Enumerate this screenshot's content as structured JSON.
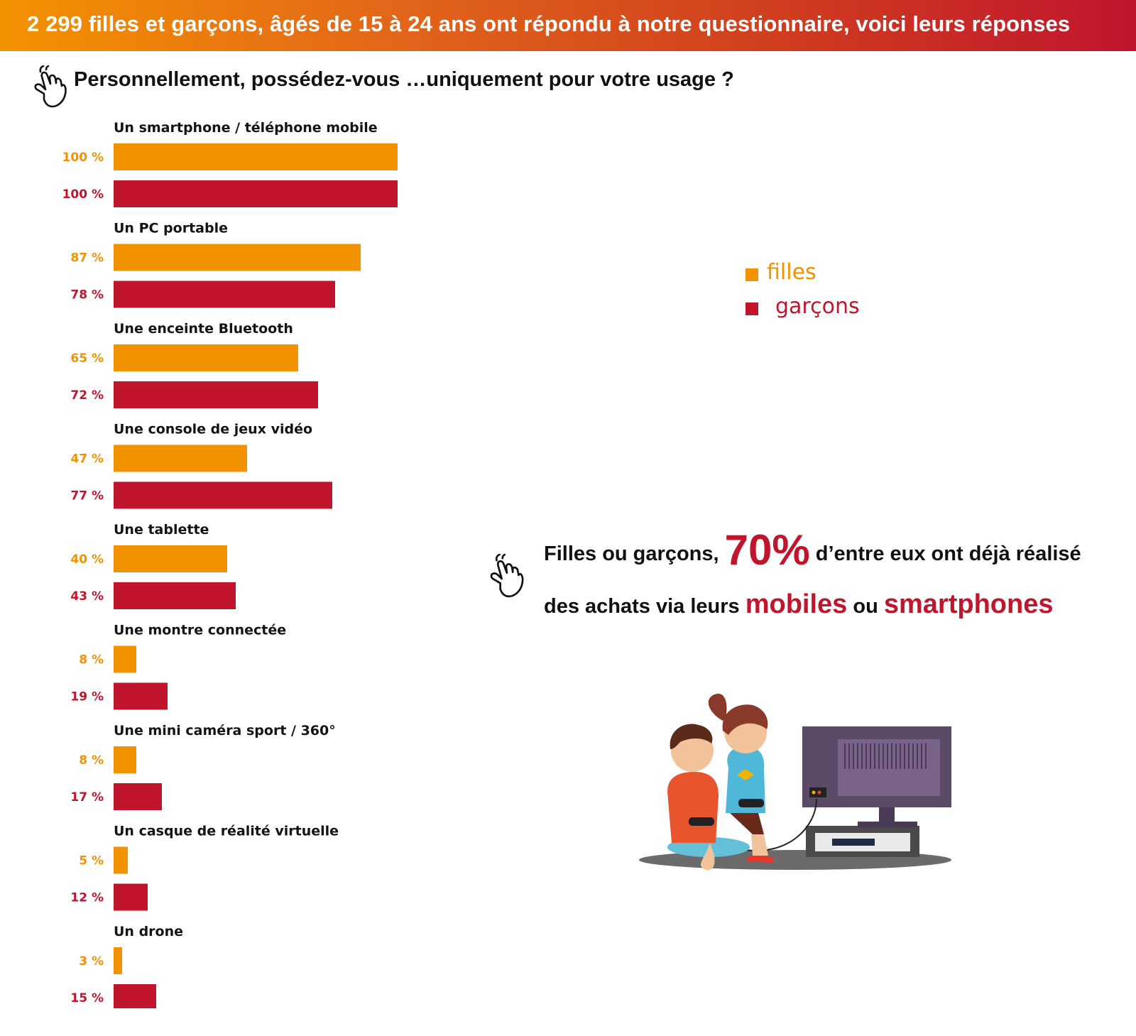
{
  "header": {
    "title": "2 299  filles et garçons, âgés de 15 à 24 ans ont répondu à notre questionnaire, voici leurs réponses"
  },
  "question": {
    "text": "Personnellement, possédez-vous …uniquement pour votre usage ?"
  },
  "legend": {
    "filles": "filles",
    "garcons": "garçons"
  },
  "callout": {
    "part1": "Filles ou garçons, ",
    "big_value": "70%",
    "part2": " d’entre eux ont déjà réalisé",
    "part3": "des achats via leurs ",
    "word_mobiles": "mobiles",
    "part4": " ou ",
    "word_smartphones": "smartphones"
  },
  "colors": {
    "filles": "#f39200",
    "garcons": "#c0152d"
  },
  "chart_data": {
    "type": "bar",
    "orientation": "horizontal",
    "categories": [
      "Un smartphone / téléphone mobile",
      "Un PC portable",
      "Une enceinte Bluetooth",
      "Une console de jeux vidéo",
      "Une tablette",
      "Une montre connectée",
      "Une mini caméra sport / 360°",
      "Un casque de réalité virtuelle",
      "Un drone"
    ],
    "series": [
      {
        "name": "filles",
        "values": [
          100,
          87,
          65,
          47,
          40,
          8,
          8,
          5,
          3
        ],
        "labels": [
          "100 %",
          "87 %",
          "65 %",
          "47 %",
          "40 %",
          "8 %",
          "8 %",
          "5 %",
          "3 %"
        ]
      },
      {
        "name": "garçons",
        "values": [
          100,
          78,
          72,
          77,
          43,
          19,
          17,
          12,
          15
        ],
        "labels": [
          "100 %",
          "78 %",
          "72 %",
          "77 %",
          "43 %",
          "19 %",
          "17 %",
          "12 %",
          "15 %"
        ]
      }
    ],
    "xlim": [
      0,
      100
    ],
    "unit": "%",
    "legend_position": "right",
    "grid": false
  }
}
